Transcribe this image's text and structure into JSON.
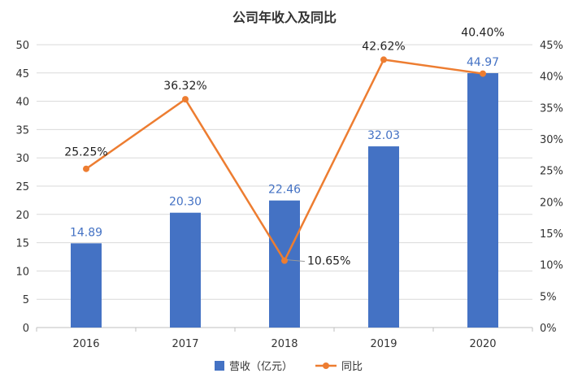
{
  "chart_data": {
    "type": "bar",
    "title": "公司年收入及同比",
    "categories": [
      "2016",
      "2017",
      "2018",
      "2019",
      "2020"
    ],
    "series": [
      {
        "name": "营收（亿元）",
        "type": "bar",
        "axis": "left",
        "values": [
          14.89,
          20.3,
          22.46,
          32.03,
          44.97
        ],
        "labels": [
          "14.89",
          "20.30",
          "22.46",
          "32.03",
          "44.97"
        ],
        "color": "#4472C4"
      },
      {
        "name": "同比",
        "type": "line",
        "axis": "right",
        "values": [
          25.25,
          36.32,
          10.65,
          42.62,
          40.4
        ],
        "labels": [
          "25.25%",
          "36.32%",
          "10.65%",
          "42.62%",
          "40.40%"
        ],
        "color": "#ED7D31"
      }
    ],
    "y_left": {
      "min": 0,
      "max": 50,
      "step": 5,
      "ticks": [
        "0",
        "5",
        "10",
        "15",
        "20",
        "25",
        "30",
        "35",
        "40",
        "45",
        "50"
      ]
    },
    "y_right": {
      "min": 0,
      "max": 45,
      "step": 5,
      "ticks": [
        "0%",
        "5%",
        "10%",
        "15%",
        "20%",
        "25%",
        "30%",
        "35%",
        "40%",
        "45%"
      ]
    },
    "grid": true,
    "legend_position": "bottom"
  }
}
